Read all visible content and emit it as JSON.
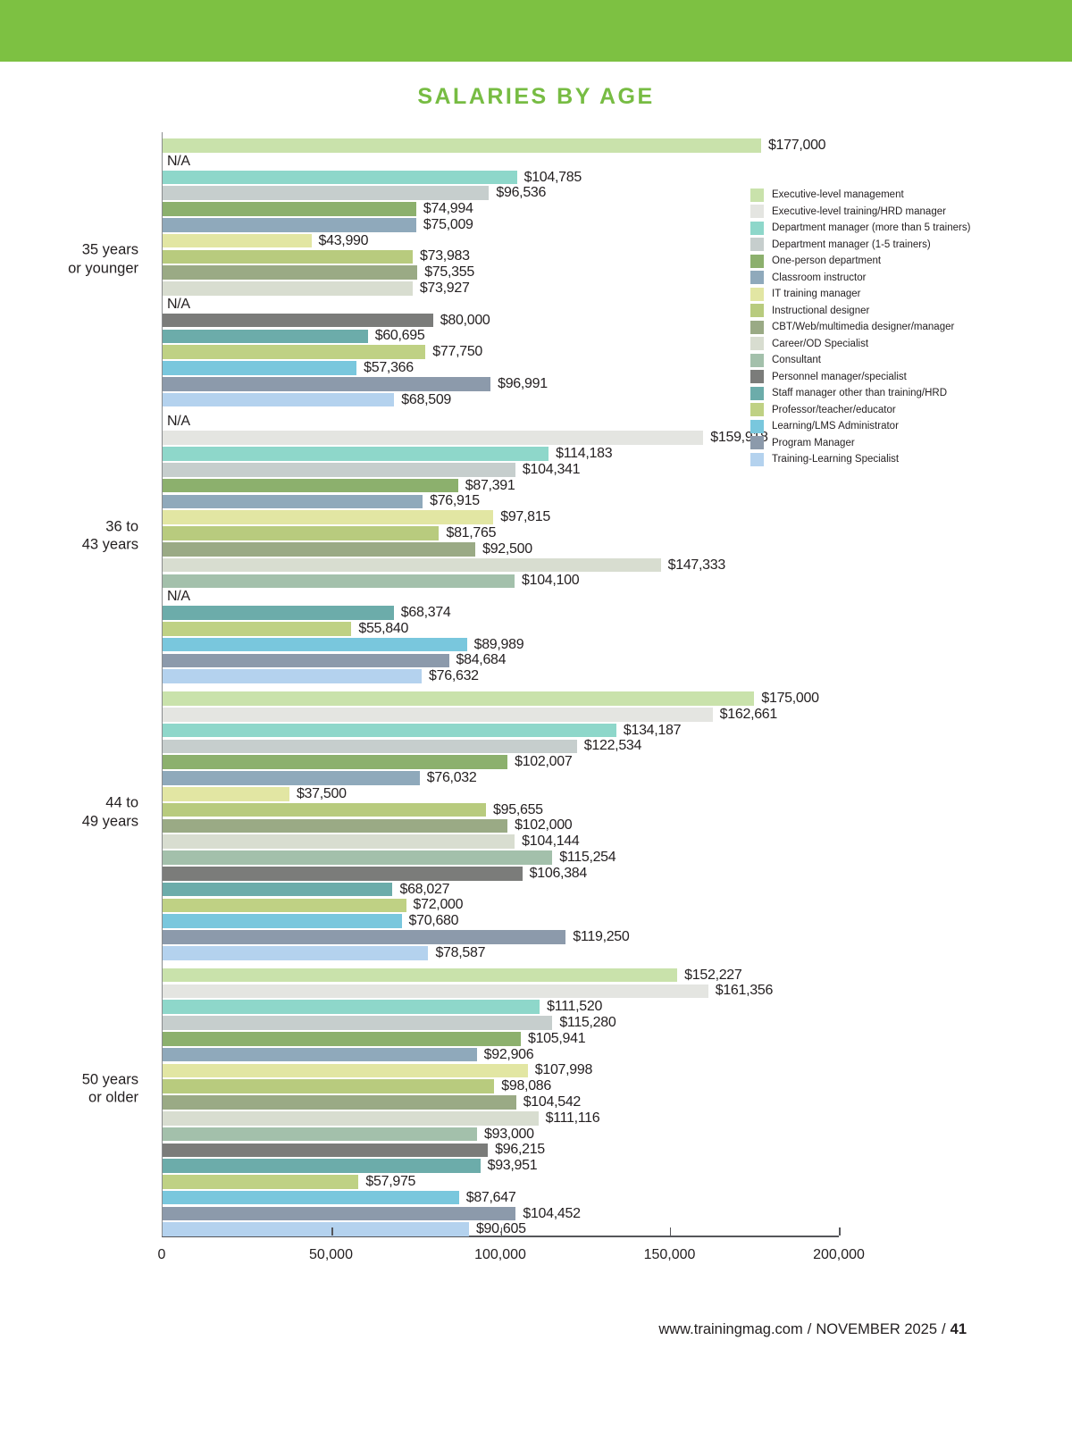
{
  "chart_data": {
    "type": "bar",
    "orientation": "horizontal",
    "title": "SALARIES BY AGE",
    "xlabel": "",
    "ylabel": "",
    "xlim": [
      0,
      200000
    ],
    "grid": false,
    "legend_position": "top-right",
    "na_label": "N/A",
    "x_ticks": [
      {
        "value": 0,
        "label": "0"
      },
      {
        "value": 50000,
        "label": "50,000"
      },
      {
        "value": 100000,
        "label": "100,000"
      },
      {
        "value": 150000,
        "label": "150,000"
      },
      {
        "value": 200000,
        "label": "200,000"
      }
    ],
    "legend": [
      {
        "name": "Executive-level management",
        "color": "#c9e2ab"
      },
      {
        "name": "Executive-level training/HRD manager",
        "color": "#e4e5e1"
      },
      {
        "name": "Department manager (more than 5 trainers)",
        "color": "#8ed7ca"
      },
      {
        "name": "Department manager (1-5 trainers)",
        "color": "#c6cecd"
      },
      {
        "name": "One-person department",
        "color": "#8cb06d"
      },
      {
        "name": "Classroom instructor",
        "color": "#8fa9bb"
      },
      {
        "name": "IT training manager",
        "color": "#e2e6a3"
      },
      {
        "name": "Instructional designer",
        "color": "#b8cb7e"
      },
      {
        "name": "CBT/Web/multimedia designer/manager",
        "color": "#9aaa85"
      },
      {
        "name": "Career/OD Specialist",
        "color": "#d8ddd0"
      },
      {
        "name": "Consultant",
        "color": "#a3c0ab"
      },
      {
        "name": "Personnel manager/specialist",
        "color": "#7b7c7a"
      },
      {
        "name": "Staff manager other than training/HRD",
        "color": "#6cacaa"
      },
      {
        "name": "Professor/teacher/educator",
        "color": "#bfd184"
      },
      {
        "name": "Learning/LMS Administrator",
        "color": "#79c7dd"
      },
      {
        "name": "Program Manager",
        "color": "#8c9aab"
      },
      {
        "name": "Training-Learning Specialist",
        "color": "#b4d2ee"
      }
    ],
    "groups": [
      {
        "label_lines": [
          "35 years",
          "or younger"
        ],
        "values": [
          177000,
          null,
          104785,
          96536,
          74994,
          75009,
          43990,
          73983,
          75355,
          73927,
          null,
          80000,
          60695,
          77750,
          57366,
          96991,
          68509
        ],
        "labels": [
          "$177,000",
          "N/A",
          "$104,785",
          "$96,536",
          "$74,994",
          "$75,009",
          "$43,990",
          "$73,983",
          "$75,355",
          "$73,927",
          "N/A",
          "$80,000",
          "$60,695",
          "$77,750",
          "$57,366",
          "$96,991",
          "$68,509"
        ]
      },
      {
        "label_lines": [
          "36 to",
          "43 years"
        ],
        "values": [
          null,
          159918,
          114183,
          104341,
          87391,
          76915,
          97815,
          81765,
          92500,
          147333,
          104100,
          null,
          68374,
          55840,
          89989,
          84684,
          76632
        ],
        "labels": [
          "N/A",
          "$159,918",
          "$114,183",
          "$104,341",
          "$87,391",
          "$76,915",
          "$97,815",
          "$81,765",
          "$92,500",
          "$147,333",
          "$104,100",
          "N/A",
          "$68,374",
          "$55,840",
          "$89,989",
          "$84,684",
          "$76,632"
        ]
      },
      {
        "label_lines": [
          "44 to",
          "49 years"
        ],
        "values": [
          175000,
          162661,
          134187,
          122534,
          102007,
          76032,
          37500,
          95655,
          102000,
          104144,
          115254,
          106384,
          68027,
          72000,
          70680,
          119250,
          78587
        ],
        "labels": [
          "$175,000",
          "$162,661",
          "$134,187",
          "$122,534",
          "$102,007",
          "$76,032",
          "$37,500",
          "$95,655",
          "$102,000",
          "$104,144",
          "$115,254",
          "$106,384",
          "$68,027",
          "$72,000",
          "$70,680",
          "$119,250",
          "$78,587"
        ]
      },
      {
        "label_lines": [
          "50 years",
          "or older"
        ],
        "values": [
          152227,
          161356,
          111520,
          115280,
          105941,
          92906,
          107998,
          98086,
          104542,
          111116,
          93000,
          96215,
          93951,
          57975,
          87647,
          104452,
          90605
        ],
        "labels": [
          "$152,227",
          "$161,356",
          "$111,520",
          "$115,280",
          "$105,941",
          "$92,906",
          "$107,998",
          "$98,086",
          "$104,542",
          "$111,116",
          "$93,000",
          "$96,215",
          "$93,951",
          "$57,975",
          "$87,647",
          "$104,452",
          "$90,605"
        ]
      }
    ]
  },
  "footer": {
    "site": "www.trainingmag.com",
    "separator1": "/",
    "issue": "NOVEMBER 2025",
    "separator2": "/",
    "page_number": "41"
  }
}
